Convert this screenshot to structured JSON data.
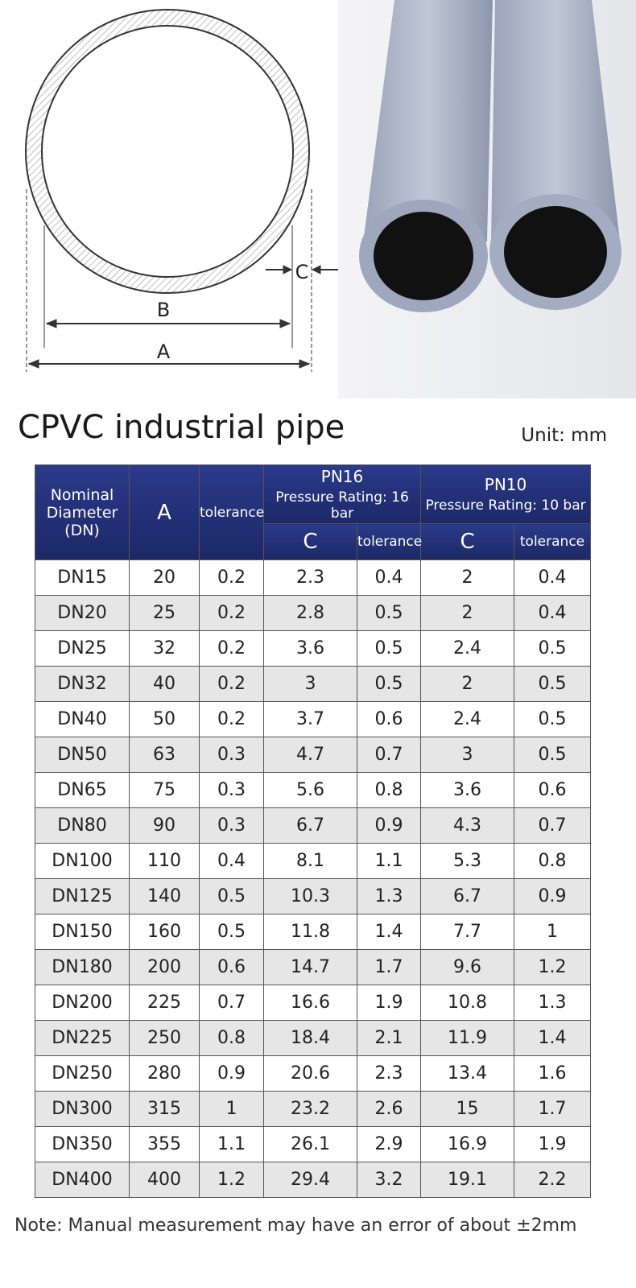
{
  "diagram": {
    "labels": [
      "A",
      "B",
      "C"
    ]
  },
  "title": "CPVC industrial pipe",
  "unit": "Unit: mm",
  "table": {
    "header": {
      "dn": "Nominal Diameter (DN)",
      "a": "A",
      "tolerance": "tolerance",
      "groups": [
        {
          "name": "PN16",
          "rating": "Pressure Rating: 16 bar",
          "c": "C",
          "tolerance": "tolerance"
        },
        {
          "name": "PN10",
          "rating": "Pressure Rating: 10 bar",
          "c": "C",
          "tolerance": "tolerance"
        }
      ]
    },
    "rows": [
      [
        "DN15",
        "20",
        "0.2",
        "2.3",
        "0.4",
        "2",
        "0.4"
      ],
      [
        "DN20",
        "25",
        "0.2",
        "2.8",
        "0.5",
        "2",
        "0.4"
      ],
      [
        "DN25",
        "32",
        "0.2",
        "3.6",
        "0.5",
        "2.4",
        "0.5"
      ],
      [
        "DN32",
        "40",
        "0.2",
        "3",
        "0.5",
        "2",
        "0.5"
      ],
      [
        "DN40",
        "50",
        "0.2",
        "3.7",
        "0.6",
        "2.4",
        "0.5"
      ],
      [
        "DN50",
        "63",
        "0.3",
        "4.7",
        "0.7",
        "3",
        "0.5"
      ],
      [
        "DN65",
        "75",
        "0.3",
        "5.6",
        "0.8",
        "3.6",
        "0.6"
      ],
      [
        "DN80",
        "90",
        "0.3",
        "6.7",
        "0.9",
        "4.3",
        "0.7"
      ],
      [
        "DN100",
        "110",
        "0.4",
        "8.1",
        "1.1",
        "5.3",
        "0.8"
      ],
      [
        "DN125",
        "140",
        "0.5",
        "10.3",
        "1.3",
        "6.7",
        "0.9"
      ],
      [
        "DN150",
        "160",
        "0.5",
        "11.8",
        "1.4",
        "7.7",
        "1"
      ],
      [
        "DN180",
        "200",
        "0.6",
        "14.7",
        "1.7",
        "9.6",
        "1.2"
      ],
      [
        "DN200",
        "225",
        "0.7",
        "16.6",
        "1.9",
        "10.8",
        "1.3"
      ],
      [
        "DN225",
        "250",
        "0.8",
        "18.4",
        "2.1",
        "11.9",
        "1.4"
      ],
      [
        "DN250",
        "280",
        "0.9",
        "20.6",
        "2.3",
        "13.4",
        "1.6"
      ],
      [
        "DN300",
        "315",
        "1",
        "23.2",
        "2.6",
        "15",
        "1.7"
      ],
      [
        "DN350",
        "355",
        "1.1",
        "26.1",
        "2.9",
        "16.9",
        "1.9"
      ],
      [
        "DN400",
        "400",
        "1.2",
        "29.4",
        "3.2",
        "19.1",
        "2.2"
      ]
    ]
  },
  "note": "Note: Manual measurement may have an error of about ±2mm"
}
